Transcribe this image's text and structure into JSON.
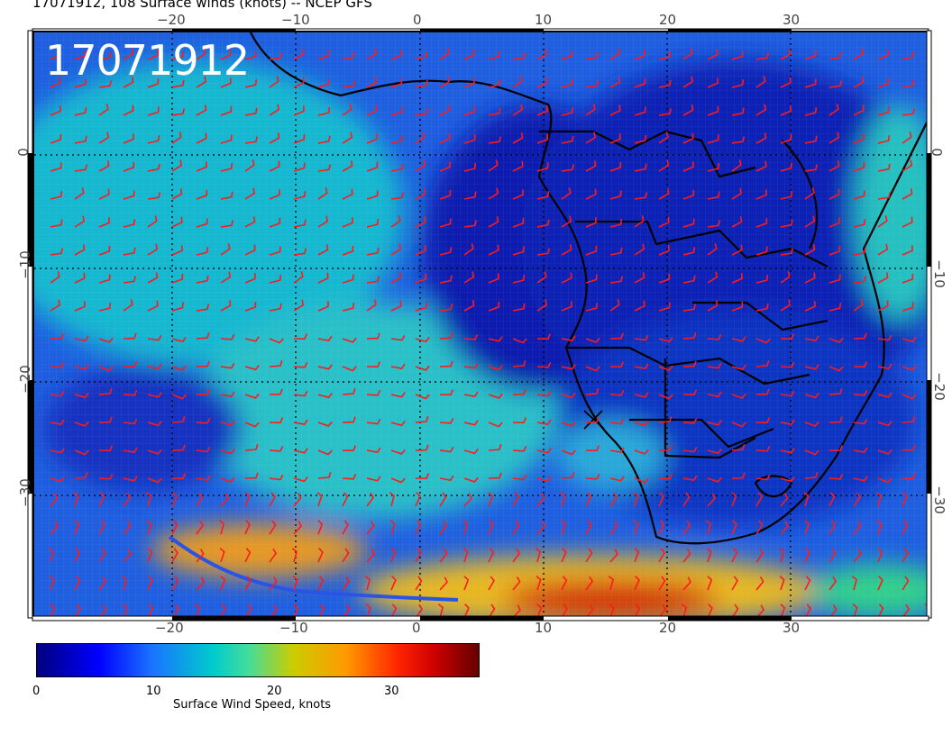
{
  "title": "17071912, 108 Surface winds (knots) -- NCEP GFS",
  "stamp": "17071912",
  "colors": {
    "ocean_low": "#0a1fb8",
    "ocean_mid": "#19b7d6",
    "high_wind": "#e8901a",
    "extreme": "#d21a0a",
    "barbs": "#ff1a1a",
    "coast": "#000000"
  },
  "axes": {
    "longitude_labels": [
      "−20",
      "−10",
      "0",
      "10",
      "20",
      "30"
    ],
    "latitude_labels": [
      "0",
      "−10",
      "−20",
      "−30"
    ]
  },
  "colorbar": {
    "ticks": [
      "0",
      "10",
      "20",
      "30"
    ],
    "title": "Surface Wind Speed, knots"
  }
}
